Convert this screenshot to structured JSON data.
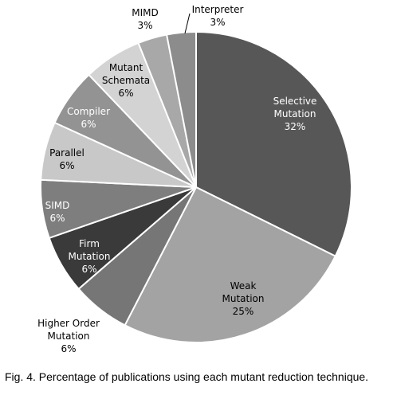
{
  "chart_data": {
    "type": "pie",
    "title": "",
    "start": "12 o'clock",
    "direction": "clockwise",
    "slices": [
      {
        "label_lines": [
          "Selective",
          "Mutation",
          "32%"
        ],
        "value": 32,
        "color": "#575757",
        "text_color": "#ffffff"
      },
      {
        "label_lines": [
          "Weak",
          "Mutation",
          "25%"
        ],
        "value": 25,
        "color": "#a3a3a3",
        "text_color": "#000000"
      },
      {
        "label_lines": [
          "Higher Order",
          "Mutation",
          "6%"
        ],
        "value": 6,
        "color": "#767676",
        "text_color": "#000000"
      },
      {
        "label_lines": [
          "Firm",
          "Mutation",
          "6%"
        ],
        "value": 6,
        "color": "#3a3a3a",
        "text_color": "#ffffff"
      },
      {
        "label_lines": [
          "SIMD",
          "6%"
        ],
        "value": 6,
        "color": "#7e7e7e",
        "text_color": "#ffffff"
      },
      {
        "label_lines": [
          "Parallel",
          "6%"
        ],
        "value": 6,
        "color": "#c8c8c8",
        "text_color": "#000000"
      },
      {
        "label_lines": [
          "Compiler",
          "6%"
        ],
        "value": 6,
        "color": "#939393",
        "text_color": "#ffffff"
      },
      {
        "label_lines": [
          "Mutant",
          "Schemata",
          "6%"
        ],
        "value": 6,
        "color": "#d3d3d3",
        "text_color": "#000000"
      },
      {
        "label_lines": [
          "MIMD",
          "3%"
        ],
        "value": 3,
        "color": "#a8a8a8",
        "text_color": "#000000"
      },
      {
        "label_lines": [
          "Interpreter",
          "3%"
        ],
        "value": 3,
        "color": "#8c8c8c",
        "text_color": "#000000"
      }
    ]
  },
  "caption": "Fig. 4. Percentage of publications using each mutant reduction technique."
}
